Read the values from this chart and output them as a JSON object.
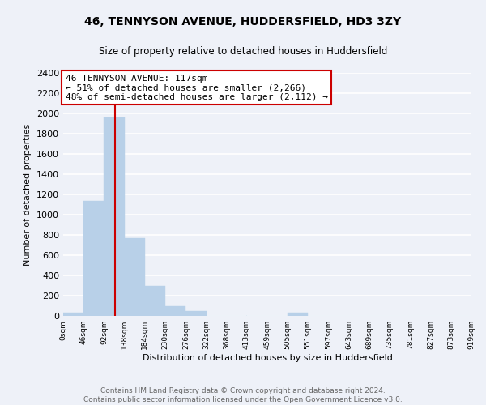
{
  "title": "46, TENNYSON AVENUE, HUDDERSFIELD, HD3 3ZY",
  "subtitle": "Size of property relative to detached houses in Huddersfield",
  "xlabel": "Distribution of detached houses by size in Huddersfield",
  "ylabel": "Number of detached properties",
  "bar_color": "#b8d0e8",
  "annotation_box_text": "46 TENNYSON AVENUE: 117sqm\n← 51% of detached houses are smaller (2,266)\n48% of semi-detached houses are larger (2,112) →",
  "red_line_x": 117,
  "ylim": [
    0,
    2400
  ],
  "yticks": [
    0,
    200,
    400,
    600,
    800,
    1000,
    1200,
    1400,
    1600,
    1800,
    2000,
    2200,
    2400
  ],
  "bin_edges": [
    0,
    46,
    92,
    138,
    184,
    230,
    276,
    322,
    368,
    413,
    459,
    505,
    551,
    597,
    643,
    689,
    735,
    781,
    827,
    873,
    919
  ],
  "bin_labels": [
    "0sqm",
    "46sqm",
    "92sqm",
    "138sqm",
    "184sqm",
    "230sqm",
    "276sqm",
    "322sqm",
    "368sqm",
    "413sqm",
    "459sqm",
    "505sqm",
    "551sqm",
    "597sqm",
    "643sqm",
    "689sqm",
    "735sqm",
    "781sqm",
    "827sqm",
    "873sqm",
    "919sqm"
  ],
  "bar_heights": [
    35,
    1140,
    1960,
    770,
    300,
    100,
    45,
    0,
    0,
    0,
    0,
    30,
    0,
    0,
    0,
    0,
    0,
    0,
    0,
    0
  ],
  "footer_text": "Contains HM Land Registry data © Crown copyright and database right 2024.\nContains public sector information licensed under the Open Government Licence v3.0.",
  "background_color": "#eef1f8",
  "grid_color": "#ffffff",
  "annotation_box_color": "#ffffff",
  "annotation_box_edge": "#cc0000",
  "red_line_color": "#cc0000",
  "footer_color": "#666666"
}
